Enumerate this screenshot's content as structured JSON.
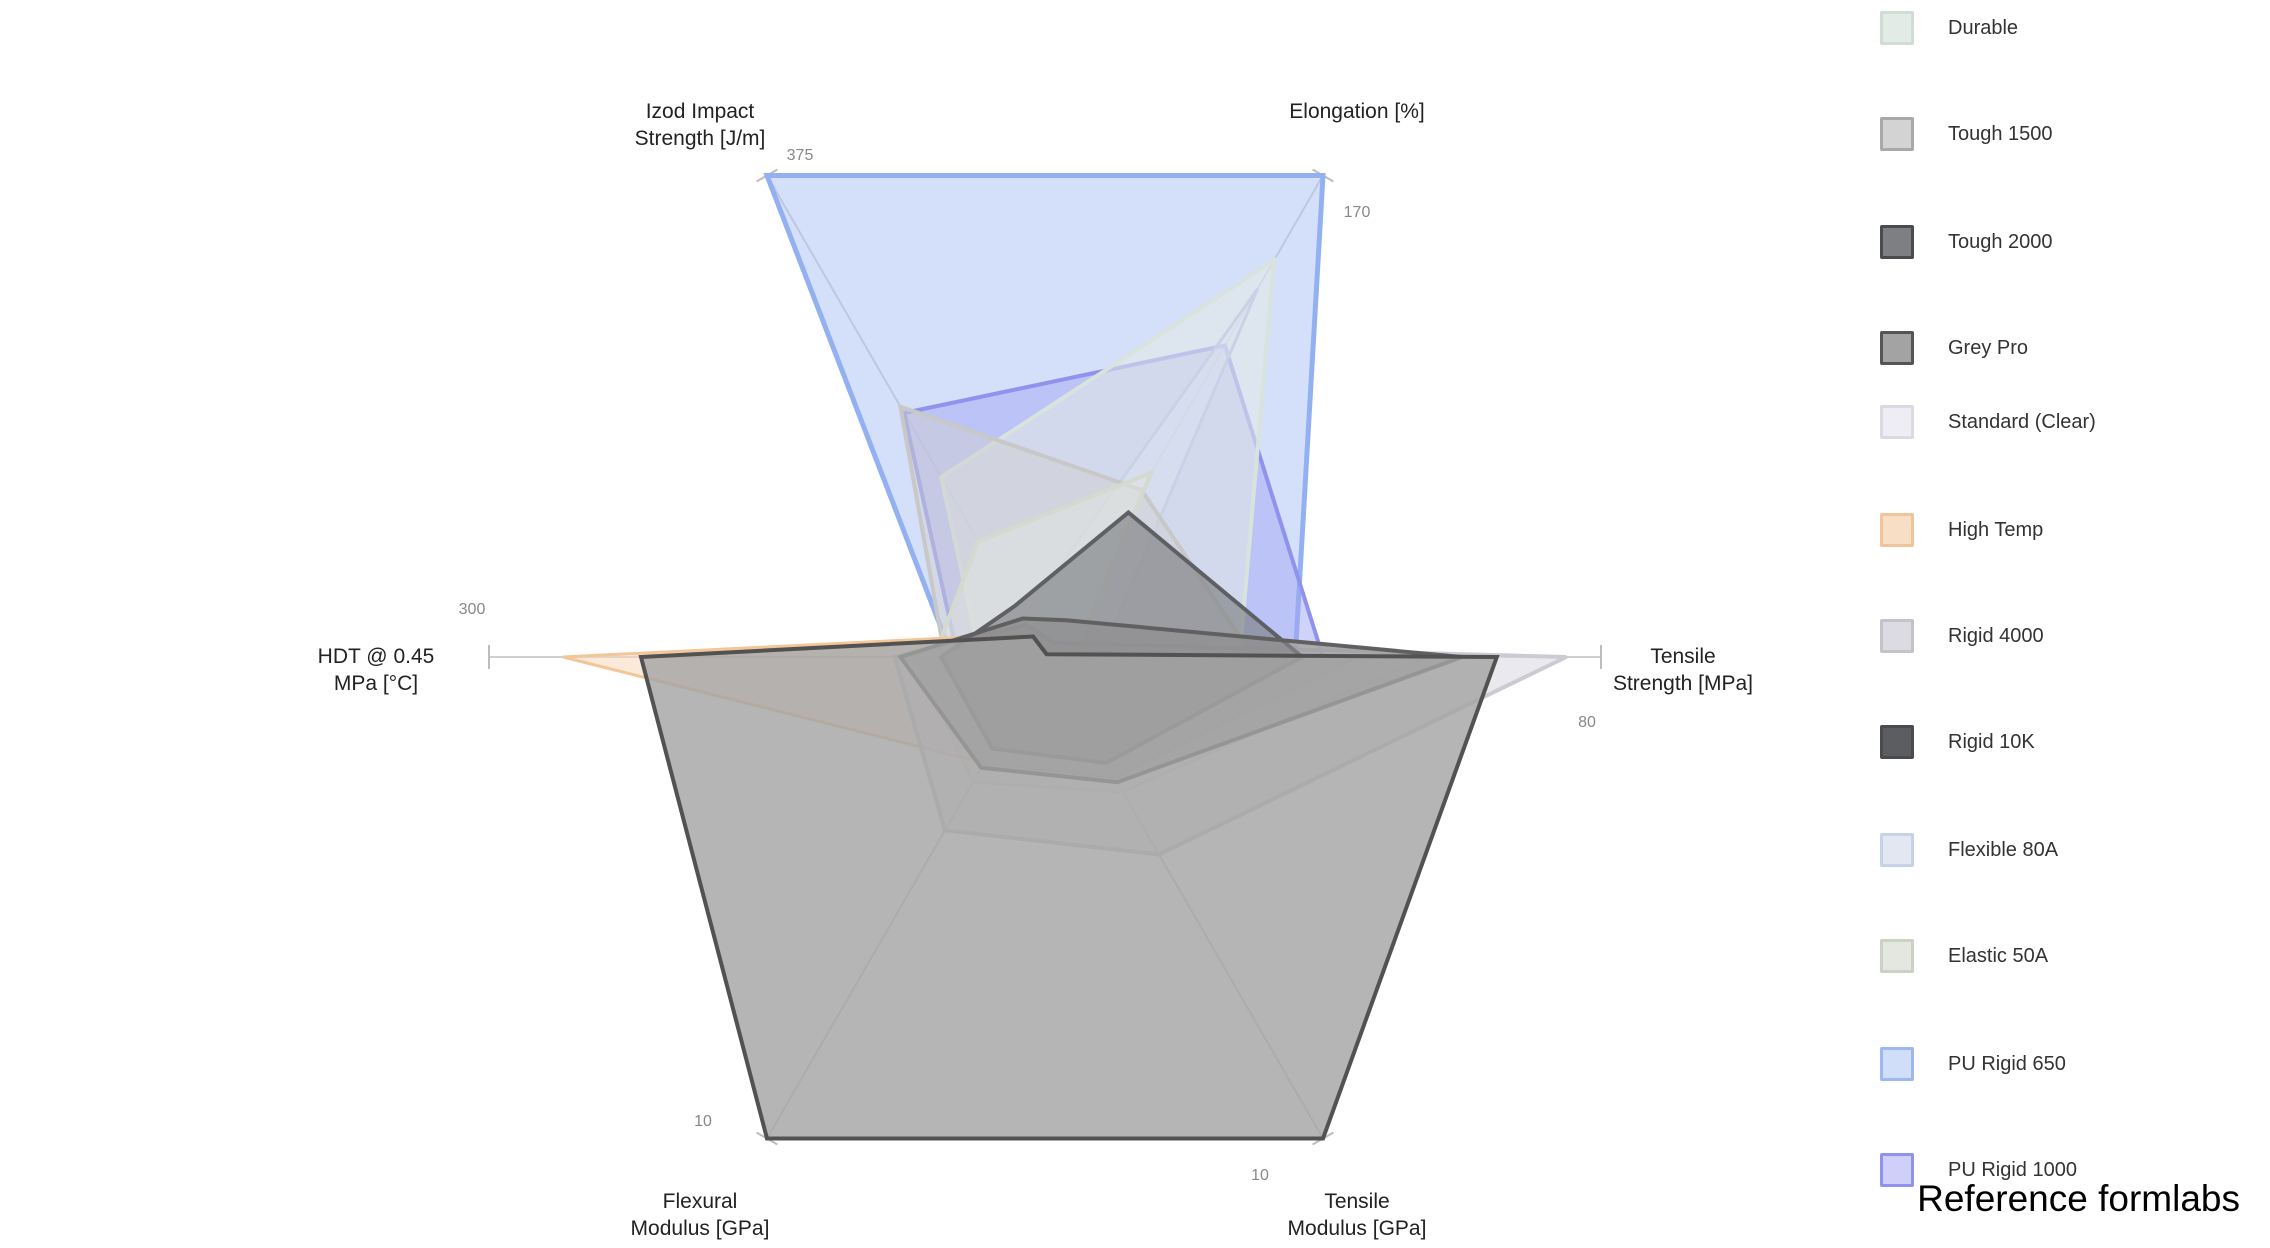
{
  "chart_data": {
    "type": "radar",
    "axes": [
      {
        "name": "Izod Impact\nStrength [J/m]",
        "max": 375,
        "tick": "375"
      },
      {
        "name": "Elongation [%]",
        "max": 170,
        "tick": "170"
      },
      {
        "name": "Tensile\nStrength [MPa]",
        "max": 80,
        "tick": "80"
      },
      {
        "name": "Tensile\nModulus [GPa]",
        "max": 10,
        "tick": "10"
      },
      {
        "name": "Flexural\nModulus [GPa]",
        "max": 10,
        "tick": "10"
      },
      {
        "name": "HDT @ 0.45\nMPa [°C]",
        "max": 300,
        "tick": "300"
      }
    ],
    "series": [
      {
        "name": "PU Rigid 650",
        "fill": "#a9c2f5",
        "stroke": "#93b1f2",
        "fill_opacity": 0.5,
        "stroke_width": 5,
        "values": [
          375,
          170,
          36,
          0.4,
          0.5,
          50
        ]
      },
      {
        "name": "PU Rigid 1000",
        "fill": "#a3a6f4",
        "stroke": "#8f93ee",
        "fill_opacity": 0.5,
        "stroke_width": 4,
        "values": [
          190,
          110,
          40,
          1.8,
          1.9,
          47
        ]
      },
      {
        "name": "Durable",
        "fill": "#e3ebe6",
        "stroke": "#d7e3dc",
        "fill_opacity": 0.55,
        "stroke_width": 4,
        "values": [
          140,
          140,
          28,
          1.0,
          0.9,
          35
        ]
      },
      {
        "name": "Flexible 80A",
        "fill": "#dde3f0",
        "stroke": "#c8d2e6",
        "fill_opacity": 0.4,
        "stroke_width": 3,
        "values": [
          30,
          130,
          8,
          0.1,
          0.1,
          10
        ]
      },
      {
        "name": "Tough 1500",
        "fill": "#d0d0d0",
        "stroke": "#c8c8c8",
        "fill_opacity": 0.5,
        "stroke_width": 4,
        "values": [
          195,
          59,
          30,
          1.6,
          1.4,
          54
        ]
      },
      {
        "name": "Elastic 50A",
        "fill": "#e4e6e0",
        "stroke": "#d5dace",
        "fill_opacity": 0.5,
        "stroke_width": 4,
        "values": [
          90,
          65,
          4,
          0.4,
          0.3,
          60
        ]
      },
      {
        "name": "Standard (Clear)",
        "fill": "#eeedf3",
        "stroke": "#dad8e4",
        "fill_opacity": 0.45,
        "stroke_width": 3,
        "values": [
          30,
          13,
          55,
          2.8,
          2.6,
          70
        ]
      },
      {
        "name": "High Temp",
        "fill": "#f7d8bc",
        "stroke": "#f3c699",
        "fill_opacity": 0.55,
        "stroke_width": 3,
        "values": [
          18,
          2,
          45,
          2.5,
          2.2,
          260
        ]
      },
      {
        "name": "Rigid 4000",
        "fill": "#dcdbe1",
        "stroke": "#cccbd4",
        "fill_opacity": 0.6,
        "stroke_width": 4,
        "values": [
          25,
          5,
          75,
          4.1,
          3.6,
          81
        ]
      },
      {
        "name": "Tough 2000",
        "fill": "#7e7f83",
        "stroke": "#5f6064",
        "fill_opacity": 0.65,
        "stroke_width": 4,
        "values": [
          40,
          51,
          37,
          2.2,
          1.9,
          56
        ]
      },
      {
        "name": "Grey Pro",
        "fill": "#8a8a8a",
        "stroke": "#606060",
        "fill_opacity": 0.6,
        "stroke_width": 4,
        "values": [
          30,
          13,
          60,
          2.6,
          2.3,
          78
        ]
      },
      {
        "name": "Rigid 10K",
        "fill": "#a3a3a3",
        "stroke": "#525252",
        "fill_opacity": 0.8,
        "stroke_width": 4,
        "values": [
          16,
          1,
          65,
          10,
          10,
          218
        ]
      }
    ]
  },
  "legend": [
    {
      "label": "Durable",
      "fill": "#e3ebe6",
      "border": "#cfddd5"
    },
    {
      "label": "Tough 1500",
      "fill": "#d3d3d3",
      "border": "#a9a9a9"
    },
    {
      "label": "Tough 2000",
      "fill": "#7e7f83",
      "border": "#4a4b4f"
    },
    {
      "label": "Grey Pro",
      "fill": "#a3a3a3",
      "border": "#555555"
    },
    {
      "label": "Standard (Clear)",
      "fill": "#eeedf3",
      "border": "#dbdae3"
    },
    {
      "label": "High Temp",
      "fill": "#f9dec6",
      "border": "#f1c49a"
    },
    {
      "label": "Rigid 4000",
      "fill": "#dcdbe1",
      "border": "#c4c3cc"
    },
    {
      "label": "Rigid 10K",
      "fill": "#5c5d61",
      "border": "#4a4b4f"
    },
    {
      "label": "Flexible 80A",
      "fill": "#e2e7f2",
      "border": "#c8d2e6"
    },
    {
      "label": "Elastic 50A",
      "fill": "#e4e6e0",
      "border": "#ccd1c5"
    },
    {
      "label": "PU Rigid 650",
      "fill": "#d0defa",
      "border": "#9db7f2"
    },
    {
      "label": "PU Rigid 1000",
      "fill": "#cfd0fa",
      "border": "#8f93ee"
    }
  ],
  "footer": "Reference formlabs"
}
